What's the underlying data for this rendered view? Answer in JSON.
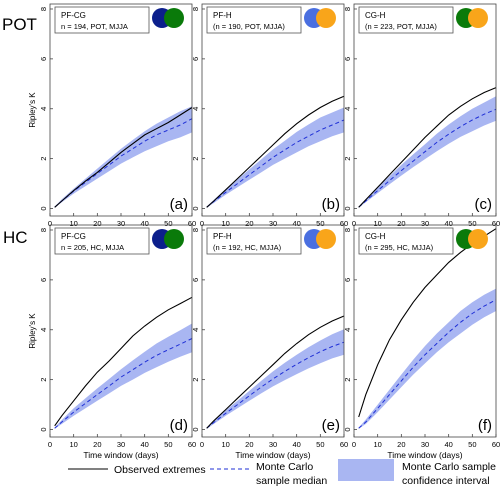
{
  "row_labels": [
    "POT",
    "HC"
  ],
  "colors": {
    "observed": "#000000",
    "median": "#1f2fd6",
    "band": "#a9b6f2",
    "circle_navy": "#0c1f8c",
    "circle_green": "#0a7a0a",
    "circle_blue": "#4a6fe0",
    "circle_orange": "#f9a51a"
  },
  "legend": {
    "observed": "Observed extremes",
    "median_line1": "Monte Carlo",
    "median_line2": "sample median",
    "band_line1": "Monte Carlo sample",
    "band_line2": "confidence interval"
  },
  "chart_data": [
    {
      "type": "line",
      "panel": "(a)",
      "box_line1": "PF-CG",
      "box_line2": "n = 194, POT, MJJA",
      "circles": [
        "navy",
        "green"
      ],
      "xlabel": "",
      "ylabel": "Ripley's K",
      "xlim": [
        0,
        60
      ],
      "ylim": [
        -0.3,
        8.2
      ],
      "xticks": [
        0,
        10,
        20,
        30,
        40,
        50,
        60
      ],
      "yticks": [
        0,
        2,
        4,
        6,
        8
      ],
      "x": [
        2,
        5,
        10,
        15,
        20,
        25,
        30,
        35,
        40,
        45,
        50,
        55,
        60
      ],
      "observed": [
        0.05,
        0.3,
        0.72,
        1.1,
        1.45,
        1.85,
        2.25,
        2.6,
        2.95,
        3.2,
        3.45,
        3.75,
        4.05
      ],
      "median": [
        0.05,
        0.3,
        0.7,
        1.05,
        1.4,
        1.75,
        2.1,
        2.4,
        2.7,
        2.95,
        3.15,
        3.35,
        3.6
      ],
      "lower": [
        0.03,
        0.25,
        0.6,
        0.9,
        1.2,
        1.5,
        1.8,
        2.05,
        2.3,
        2.5,
        2.7,
        2.85,
        3.05
      ],
      "upper": [
        0.08,
        0.37,
        0.8,
        1.2,
        1.6,
        2.0,
        2.4,
        2.75,
        3.1,
        3.4,
        3.65,
        3.9,
        4.1
      ]
    },
    {
      "type": "line",
      "panel": "(b)",
      "box_line1": "PF-H",
      "box_line2": "(n = 190, POT, MJJA)",
      "circles": [
        "blue",
        "orange"
      ],
      "xlabel": "",
      "ylabel": "",
      "xlim": [
        0,
        60
      ],
      "ylim": [
        -0.3,
        8.2
      ],
      "xticks": [
        0,
        10,
        20,
        30,
        40,
        50,
        60
      ],
      "yticks": [
        0,
        2,
        4,
        6,
        8
      ],
      "x": [
        2,
        5,
        10,
        15,
        20,
        25,
        30,
        35,
        40,
        45,
        50,
        55,
        60
      ],
      "observed": [
        0.05,
        0.3,
        0.75,
        1.2,
        1.65,
        2.1,
        2.55,
        3.0,
        3.4,
        3.75,
        4.05,
        4.3,
        4.5
      ],
      "median": [
        0.05,
        0.28,
        0.65,
        1.0,
        1.35,
        1.7,
        2.05,
        2.35,
        2.65,
        2.9,
        3.15,
        3.35,
        3.55
      ],
      "lower": [
        0.03,
        0.22,
        0.55,
        0.85,
        1.15,
        1.45,
        1.75,
        2.0,
        2.25,
        2.5,
        2.7,
        2.9,
        3.05
      ],
      "upper": [
        0.08,
        0.35,
        0.78,
        1.17,
        1.57,
        1.97,
        2.37,
        2.72,
        3.07,
        3.37,
        3.65,
        3.85,
        4.05
      ]
    },
    {
      "type": "line",
      "panel": "(c)",
      "box_line1": "CG-H",
      "box_line2": "(n = 223, POT, MJJA)",
      "circles": [
        "green",
        "orange"
      ],
      "xlabel": "",
      "ylabel": "",
      "xlim": [
        0,
        60
      ],
      "ylim": [
        -0.3,
        8.2
      ],
      "xticks": [
        0,
        10,
        20,
        30,
        40,
        50,
        60
      ],
      "yticks": [
        0,
        2,
        4,
        6,
        8
      ],
      "x": [
        2,
        5,
        10,
        15,
        20,
        25,
        30,
        35,
        40,
        45,
        50,
        55,
        60
      ],
      "observed": [
        0.05,
        0.35,
        0.85,
        1.35,
        1.85,
        2.35,
        2.85,
        3.3,
        3.75,
        4.1,
        4.4,
        4.65,
        4.85
      ],
      "median": [
        0.05,
        0.3,
        0.72,
        1.12,
        1.52,
        1.9,
        2.28,
        2.65,
        2.98,
        3.28,
        3.55,
        3.78,
        3.98
      ],
      "lower": [
        0.03,
        0.25,
        0.62,
        0.97,
        1.32,
        1.66,
        1.98,
        2.3,
        2.6,
        2.87,
        3.1,
        3.33,
        3.52
      ],
      "upper": [
        0.08,
        0.38,
        0.85,
        1.3,
        1.75,
        2.17,
        2.58,
        3.0,
        3.37,
        3.7,
        4.0,
        4.25,
        4.5
      ]
    },
    {
      "type": "line",
      "panel": "(d)",
      "box_line1": "PF-CG",
      "box_line2": "n = 205, HC, MJJA",
      "circles": [
        "navy",
        "green"
      ],
      "xlabel": "Time window (days)",
      "ylabel": "Ripley's K",
      "xlim": [
        0,
        60
      ],
      "ylim": [
        -0.3,
        8.2
      ],
      "xticks": [
        0,
        10,
        20,
        30,
        40,
        50,
        60
      ],
      "yticks": [
        0,
        2,
        4,
        6,
        8
      ],
      "x": [
        2,
        5,
        10,
        15,
        20,
        25,
        30,
        35,
        40,
        45,
        50,
        55,
        60
      ],
      "observed": [
        0.15,
        0.55,
        1.15,
        1.75,
        2.3,
        2.75,
        3.25,
        3.75,
        4.15,
        4.5,
        4.8,
        5.05,
        5.3
      ],
      "median": [
        0.05,
        0.3,
        0.7,
        1.05,
        1.4,
        1.75,
        2.1,
        2.4,
        2.7,
        2.97,
        3.2,
        3.42,
        3.65
      ],
      "lower": [
        0.03,
        0.22,
        0.55,
        0.85,
        1.15,
        1.45,
        1.75,
        2.0,
        2.27,
        2.5,
        2.72,
        2.92,
        3.1
      ],
      "upper": [
        0.08,
        0.38,
        0.85,
        1.25,
        1.65,
        2.03,
        2.42,
        2.77,
        3.12,
        3.45,
        3.72,
        3.98,
        4.25
      ]
    },
    {
      "type": "line",
      "panel": "(e)",
      "box_line1": "PF-H",
      "box_line2": "(n = 192, HC, MJJA)",
      "circles": [
        "blue",
        "orange"
      ],
      "xlabel": "Time window (days)",
      "ylabel": "",
      "xlim": [
        0,
        60
      ],
      "ylim": [
        -0.3,
        8.2
      ],
      "xticks": [
        0,
        10,
        20,
        30,
        40,
        50,
        60
      ],
      "yticks": [
        0,
        2,
        4,
        6,
        8
      ],
      "x": [
        2,
        5,
        10,
        15,
        20,
        25,
        30,
        35,
        40,
        45,
        50,
        55,
        60
      ],
      "observed": [
        0.05,
        0.35,
        0.8,
        1.25,
        1.7,
        2.15,
        2.6,
        3.05,
        3.45,
        3.8,
        4.1,
        4.35,
        4.55
      ],
      "median": [
        0.05,
        0.28,
        0.65,
        1.0,
        1.35,
        1.7,
        2.03,
        2.33,
        2.62,
        2.88,
        3.12,
        3.33,
        3.5
      ],
      "lower": [
        0.03,
        0.22,
        0.55,
        0.85,
        1.15,
        1.45,
        1.73,
        1.98,
        2.22,
        2.45,
        2.66,
        2.85,
        3.0
      ],
      "upper": [
        0.08,
        0.35,
        0.77,
        1.15,
        1.55,
        1.95,
        2.33,
        2.68,
        3.0,
        3.3,
        3.57,
        3.82,
        4.02
      ]
    },
    {
      "type": "line",
      "panel": "(f)",
      "box_line1": "CG-H",
      "box_line2": "(n = 295, HC, MJJA)",
      "circles": [
        "green",
        "orange"
      ],
      "xlabel": "Time window (days)",
      "ylabel": "",
      "xlim": [
        0,
        60
      ],
      "ylim": [
        -0.3,
        8.2
      ],
      "xticks": [
        0,
        10,
        20,
        30,
        40,
        50,
        60
      ],
      "yticks": [
        0,
        2,
        4,
        6,
        8
      ],
      "x": [
        2,
        5,
        10,
        15,
        20,
        25,
        30,
        35,
        40,
        45,
        50,
        55,
        60
      ],
      "observed": [
        0.5,
        1.4,
        2.6,
        3.6,
        4.4,
        5.1,
        5.7,
        6.2,
        6.7,
        7.1,
        7.45,
        7.75,
        8.05
      ],
      "median": [
        0.05,
        0.3,
        0.85,
        1.4,
        1.95,
        2.5,
        3.0,
        3.45,
        3.9,
        4.3,
        4.65,
        4.95,
        5.2
      ],
      "lower": [
        0.03,
        0.22,
        0.7,
        1.2,
        1.7,
        2.2,
        2.65,
        3.1,
        3.5,
        3.85,
        4.2,
        4.5,
        4.75
      ],
      "upper": [
        0.08,
        0.4,
        1.0,
        1.6,
        2.2,
        2.8,
        3.35,
        3.85,
        4.3,
        4.75,
        5.1,
        5.4,
        5.65
      ]
    }
  ]
}
